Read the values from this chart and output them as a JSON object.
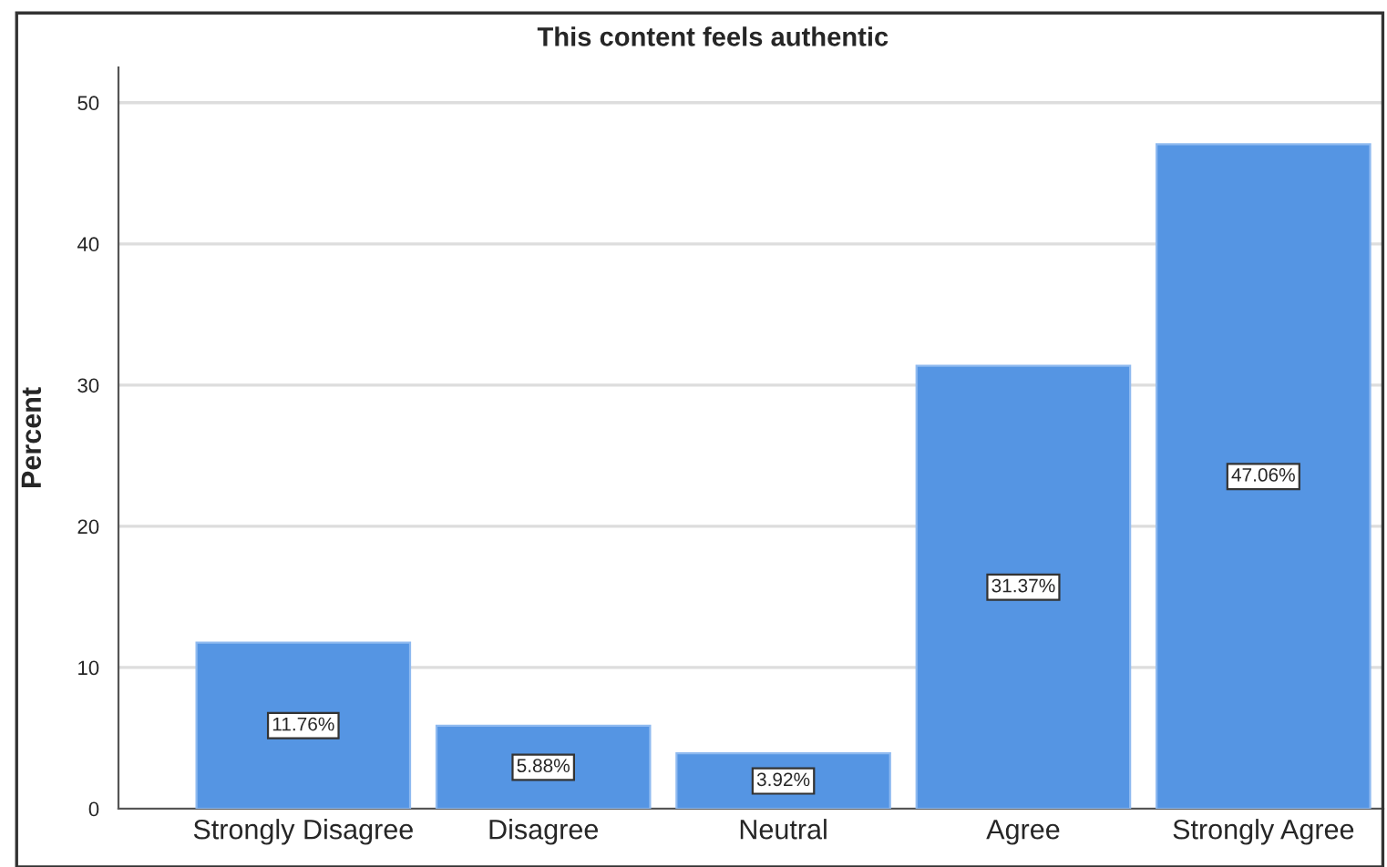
{
  "chart_data": {
    "type": "bar",
    "title": "This content feels authentic",
    "ylabel": "Percent",
    "categories": [
      "Strongly Disagree",
      "Disagree",
      "Neutral",
      "Agree",
      "Strongly Agree"
    ],
    "values": [
      11.76,
      5.88,
      3.92,
      31.37,
      47.06
    ],
    "value_labels": [
      "11.76%",
      "5.88%",
      "3.92%",
      "31.37%",
      "47.06%"
    ],
    "color": "#5595e3",
    "ylim": [
      0,
      52.5
    ],
    "yticks": [
      0,
      10,
      20,
      30,
      40,
      50
    ],
    "grid": "y"
  }
}
